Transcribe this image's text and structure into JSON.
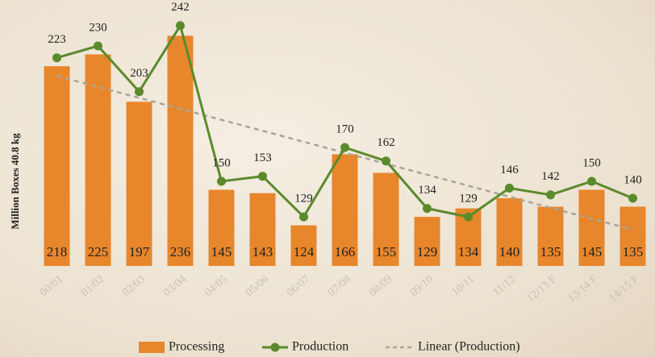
{
  "chart_data": {
    "type": "bar_line",
    "y_label": "Million Boxes 40.8 kg",
    "categories": [
      "00/01",
      "01/02",
      "02/03",
      "03/04",
      "04/05",
      "05/06",
      "06/07",
      "07/08",
      "08/09",
      "09/10",
      "10/11",
      "11/12",
      "12/13 F",
      "13/14 F",
      "14/15 F"
    ],
    "series": [
      {
        "name": "Processing",
        "type": "bar",
        "color": "#e8862b",
        "values": [
          218,
          225,
          197,
          236,
          145,
          143,
          124,
          166,
          155,
          129,
          134,
          140,
          135,
          145,
          135
        ]
      },
      {
        "name": "Production",
        "type": "line",
        "color": "#5b8a2c",
        "values": [
          223,
          230,
          203,
          242,
          150,
          153,
          129,
          170,
          162,
          134,
          129,
          146,
          142,
          150,
          140
        ]
      }
    ],
    "trend": {
      "name": "Linear (Production)",
      "color": "#a9a59c",
      "of_series": 1
    },
    "ylim": [
      100,
      250
    ]
  }
}
